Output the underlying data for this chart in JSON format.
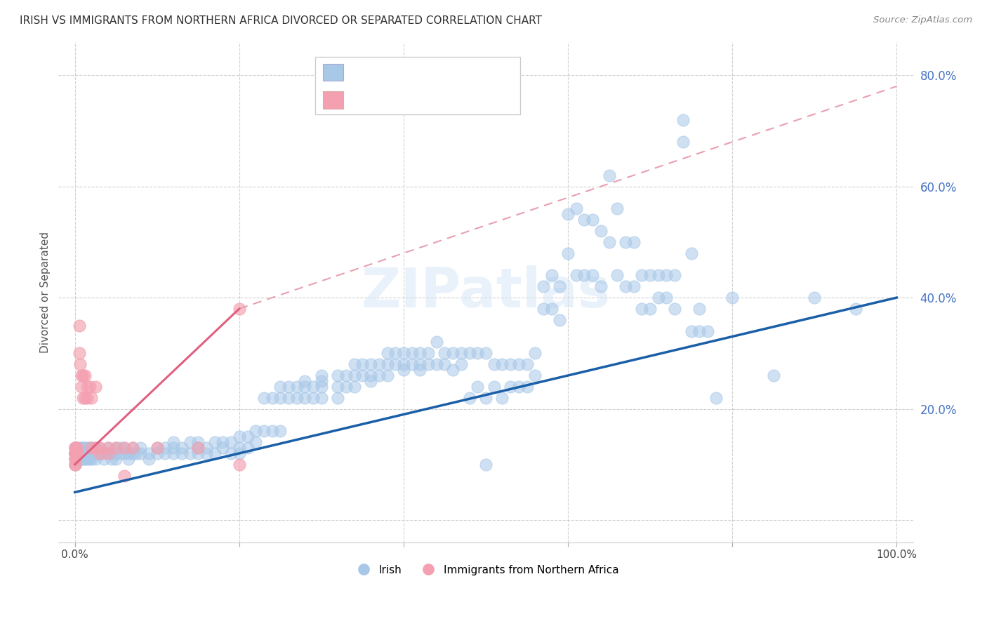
{
  "title": "IRISH VS IMMIGRANTS FROM NORTHERN AFRICA DIVORCED OR SEPARATED CORRELATION CHART",
  "source": "Source: ZipAtlas.com",
  "ylabel": "Divorced or Separated",
  "watermark": "ZIPatlas",
  "xlim": [
    -0.02,
    1.02
  ],
  "ylim": [
    -0.04,
    0.86
  ],
  "xtick_positions": [
    0.0,
    0.2,
    0.4,
    0.6,
    0.8,
    1.0
  ],
  "xticklabels": [
    "0.0%",
    "",
    "",
    "",
    "",
    "100.0%"
  ],
  "ytick_positions": [
    0.0,
    0.2,
    0.4,
    0.6,
    0.8
  ],
  "yticklabels": [
    "",
    "20.0%",
    "40.0%",
    "60.0%",
    "80.0%"
  ],
  "irish_color": "#a8c8e8",
  "nafr_color": "#f4a0b0",
  "irish_line_color": "#1a5fa8",
  "nafr_line_color": "#e06080",
  "nafr_dashed_color": "#e8a0b0",
  "irish_line": [
    [
      0.0,
      0.05
    ],
    [
      1.0,
      0.4
    ]
  ],
  "nafr_line_solid": [
    [
      0.0,
      0.1
    ],
    [
      0.2,
      0.38
    ]
  ],
  "nafr_line_dashed": [
    [
      0.2,
      0.38
    ],
    [
      1.0,
      0.78
    ]
  ],
  "irish_scatter": [
    [
      0.0,
      0.13
    ],
    [
      0.0,
      0.12
    ],
    [
      0.0,
      0.12
    ],
    [
      0.0,
      0.11
    ],
    [
      0.0,
      0.11
    ],
    [
      0.0,
      0.1
    ],
    [
      0.0,
      0.12
    ],
    [
      0.0,
      0.13
    ],
    [
      0.0,
      0.12
    ],
    [
      0.0,
      0.11
    ],
    [
      0.0,
      0.12
    ],
    [
      0.0,
      0.13
    ],
    [
      0.005,
      0.12
    ],
    [
      0.005,
      0.13
    ],
    [
      0.005,
      0.12
    ],
    [
      0.005,
      0.11
    ],
    [
      0.005,
      0.12
    ],
    [
      0.008,
      0.12
    ],
    [
      0.008,
      0.11
    ],
    [
      0.008,
      0.13
    ],
    [
      0.008,
      0.12
    ],
    [
      0.008,
      0.12
    ],
    [
      0.01,
      0.12
    ],
    [
      0.01,
      0.13
    ],
    [
      0.01,
      0.11
    ],
    [
      0.01,
      0.12
    ],
    [
      0.01,
      0.12
    ],
    [
      0.012,
      0.12
    ],
    [
      0.012,
      0.13
    ],
    [
      0.012,
      0.11
    ],
    [
      0.012,
      0.12
    ],
    [
      0.015,
      0.12
    ],
    [
      0.015,
      0.13
    ],
    [
      0.015,
      0.11
    ],
    [
      0.015,
      0.12
    ],
    [
      0.018,
      0.12
    ],
    [
      0.018,
      0.13
    ],
    [
      0.018,
      0.11
    ],
    [
      0.02,
      0.12
    ],
    [
      0.02,
      0.13
    ],
    [
      0.02,
      0.11
    ],
    [
      0.02,
      0.12
    ],
    [
      0.025,
      0.12
    ],
    [
      0.025,
      0.13
    ],
    [
      0.025,
      0.11
    ],
    [
      0.03,
      0.12
    ],
    [
      0.03,
      0.13
    ],
    [
      0.03,
      0.12
    ],
    [
      0.035,
      0.12
    ],
    [
      0.035,
      0.11
    ],
    [
      0.04,
      0.12
    ],
    [
      0.04,
      0.13
    ],
    [
      0.045,
      0.12
    ],
    [
      0.045,
      0.11
    ],
    [
      0.05,
      0.13
    ],
    [
      0.05,
      0.12
    ],
    [
      0.05,
      0.11
    ],
    [
      0.055,
      0.12
    ],
    [
      0.055,
      0.13
    ],
    [
      0.06,
      0.12
    ],
    [
      0.06,
      0.13
    ],
    [
      0.065,
      0.12
    ],
    [
      0.065,
      0.11
    ],
    [
      0.07,
      0.12
    ],
    [
      0.07,
      0.13
    ],
    [
      0.075,
      0.12
    ],
    [
      0.08,
      0.13
    ],
    [
      0.08,
      0.12
    ],
    [
      0.09,
      0.12
    ],
    [
      0.09,
      0.11
    ],
    [
      0.1,
      0.13
    ],
    [
      0.1,
      0.12
    ],
    [
      0.11,
      0.13
    ],
    [
      0.11,
      0.12
    ],
    [
      0.12,
      0.13
    ],
    [
      0.12,
      0.12
    ],
    [
      0.12,
      0.14
    ],
    [
      0.13,
      0.13
    ],
    [
      0.13,
      0.12
    ],
    [
      0.14,
      0.14
    ],
    [
      0.14,
      0.12
    ],
    [
      0.15,
      0.13
    ],
    [
      0.15,
      0.12
    ],
    [
      0.15,
      0.14
    ],
    [
      0.16,
      0.13
    ],
    [
      0.16,
      0.12
    ],
    [
      0.17,
      0.14
    ],
    [
      0.17,
      0.12
    ],
    [
      0.18,
      0.14
    ],
    [
      0.18,
      0.13
    ],
    [
      0.19,
      0.14
    ],
    [
      0.19,
      0.12
    ],
    [
      0.2,
      0.15
    ],
    [
      0.2,
      0.13
    ],
    [
      0.2,
      0.12
    ],
    [
      0.21,
      0.15
    ],
    [
      0.21,
      0.13
    ],
    [
      0.22,
      0.16
    ],
    [
      0.22,
      0.14
    ],
    [
      0.23,
      0.16
    ],
    [
      0.23,
      0.22
    ],
    [
      0.24,
      0.22
    ],
    [
      0.24,
      0.16
    ],
    [
      0.25,
      0.24
    ],
    [
      0.25,
      0.22
    ],
    [
      0.25,
      0.16
    ],
    [
      0.26,
      0.24
    ],
    [
      0.26,
      0.22
    ],
    [
      0.27,
      0.24
    ],
    [
      0.27,
      0.22
    ],
    [
      0.28,
      0.24
    ],
    [
      0.28,
      0.22
    ],
    [
      0.28,
      0.25
    ],
    [
      0.29,
      0.24
    ],
    [
      0.29,
      0.22
    ],
    [
      0.3,
      0.24
    ],
    [
      0.3,
      0.22
    ],
    [
      0.3,
      0.25
    ],
    [
      0.3,
      0.26
    ],
    [
      0.32,
      0.26
    ],
    [
      0.32,
      0.24
    ],
    [
      0.32,
      0.22
    ],
    [
      0.33,
      0.26
    ],
    [
      0.33,
      0.24
    ],
    [
      0.34,
      0.28
    ],
    [
      0.34,
      0.26
    ],
    [
      0.34,
      0.24
    ],
    [
      0.35,
      0.28
    ],
    [
      0.35,
      0.26
    ],
    [
      0.36,
      0.28
    ],
    [
      0.36,
      0.26
    ],
    [
      0.36,
      0.25
    ],
    [
      0.37,
      0.28
    ],
    [
      0.37,
      0.26
    ],
    [
      0.38,
      0.3
    ],
    [
      0.38,
      0.28
    ],
    [
      0.38,
      0.26
    ],
    [
      0.39,
      0.3
    ],
    [
      0.39,
      0.28
    ],
    [
      0.4,
      0.3
    ],
    [
      0.4,
      0.28
    ],
    [
      0.4,
      0.27
    ],
    [
      0.41,
      0.3
    ],
    [
      0.41,
      0.28
    ],
    [
      0.42,
      0.3
    ],
    [
      0.42,
      0.28
    ],
    [
      0.42,
      0.27
    ],
    [
      0.43,
      0.3
    ],
    [
      0.43,
      0.28
    ],
    [
      0.44,
      0.32
    ],
    [
      0.44,
      0.28
    ],
    [
      0.45,
      0.3
    ],
    [
      0.45,
      0.28
    ],
    [
      0.46,
      0.3
    ],
    [
      0.46,
      0.27
    ],
    [
      0.47,
      0.3
    ],
    [
      0.47,
      0.28
    ],
    [
      0.48,
      0.3
    ],
    [
      0.48,
      0.22
    ],
    [
      0.49,
      0.3
    ],
    [
      0.49,
      0.24
    ],
    [
      0.5,
      0.3
    ],
    [
      0.5,
      0.22
    ],
    [
      0.5,
      0.1
    ],
    [
      0.51,
      0.28
    ],
    [
      0.51,
      0.24
    ],
    [
      0.52,
      0.28
    ],
    [
      0.52,
      0.22
    ],
    [
      0.53,
      0.28
    ],
    [
      0.53,
      0.24
    ],
    [
      0.54,
      0.28
    ],
    [
      0.54,
      0.24
    ],
    [
      0.55,
      0.28
    ],
    [
      0.55,
      0.24
    ],
    [
      0.56,
      0.3
    ],
    [
      0.56,
      0.26
    ],
    [
      0.57,
      0.42
    ],
    [
      0.57,
      0.38
    ],
    [
      0.58,
      0.44
    ],
    [
      0.58,
      0.38
    ],
    [
      0.59,
      0.42
    ],
    [
      0.59,
      0.36
    ],
    [
      0.6,
      0.55
    ],
    [
      0.6,
      0.48
    ],
    [
      0.61,
      0.56
    ],
    [
      0.61,
      0.44
    ],
    [
      0.62,
      0.54
    ],
    [
      0.62,
      0.44
    ],
    [
      0.63,
      0.54
    ],
    [
      0.63,
      0.44
    ],
    [
      0.64,
      0.52
    ],
    [
      0.64,
      0.42
    ],
    [
      0.65,
      0.62
    ],
    [
      0.65,
      0.5
    ],
    [
      0.66,
      0.56
    ],
    [
      0.66,
      0.44
    ],
    [
      0.67,
      0.5
    ],
    [
      0.67,
      0.42
    ],
    [
      0.68,
      0.5
    ],
    [
      0.68,
      0.42
    ],
    [
      0.69,
      0.44
    ],
    [
      0.69,
      0.38
    ],
    [
      0.7,
      0.44
    ],
    [
      0.7,
      0.38
    ],
    [
      0.71,
      0.44
    ],
    [
      0.71,
      0.4
    ],
    [
      0.72,
      0.44
    ],
    [
      0.72,
      0.4
    ],
    [
      0.73,
      0.44
    ],
    [
      0.73,
      0.38
    ],
    [
      0.74,
      0.72
    ],
    [
      0.74,
      0.68
    ],
    [
      0.75,
      0.48
    ],
    [
      0.75,
      0.34
    ],
    [
      0.76,
      0.38
    ],
    [
      0.76,
      0.34
    ],
    [
      0.77,
      0.34
    ],
    [
      0.78,
      0.22
    ],
    [
      0.8,
      0.4
    ],
    [
      0.85,
      0.26
    ],
    [
      0.9,
      0.4
    ],
    [
      0.95,
      0.38
    ]
  ],
  "nafr_scatter": [
    [
      0.0,
      0.13
    ],
    [
      0.0,
      0.12
    ],
    [
      0.0,
      0.12
    ],
    [
      0.0,
      0.11
    ],
    [
      0.0,
      0.1
    ],
    [
      0.0,
      0.1
    ],
    [
      0.0,
      0.12
    ],
    [
      0.0,
      0.13
    ],
    [
      0.0,
      0.11
    ],
    [
      0.0,
      0.12
    ],
    [
      0.003,
      0.12
    ],
    [
      0.003,
      0.13
    ],
    [
      0.003,
      0.12
    ],
    [
      0.005,
      0.35
    ],
    [
      0.005,
      0.3
    ],
    [
      0.006,
      0.28
    ],
    [
      0.008,
      0.26
    ],
    [
      0.008,
      0.24
    ],
    [
      0.01,
      0.26
    ],
    [
      0.01,
      0.22
    ],
    [
      0.012,
      0.26
    ],
    [
      0.012,
      0.22
    ],
    [
      0.015,
      0.24
    ],
    [
      0.015,
      0.22
    ],
    [
      0.018,
      0.24
    ],
    [
      0.02,
      0.22
    ],
    [
      0.02,
      0.13
    ],
    [
      0.025,
      0.24
    ],
    [
      0.025,
      0.13
    ],
    [
      0.03,
      0.13
    ],
    [
      0.03,
      0.12
    ],
    [
      0.04,
      0.13
    ],
    [
      0.04,
      0.12
    ],
    [
      0.05,
      0.13
    ],
    [
      0.06,
      0.08
    ],
    [
      0.06,
      0.13
    ],
    [
      0.07,
      0.13
    ],
    [
      0.1,
      0.13
    ],
    [
      0.15,
      0.13
    ],
    [
      0.2,
      0.38
    ],
    [
      0.2,
      0.1
    ]
  ]
}
